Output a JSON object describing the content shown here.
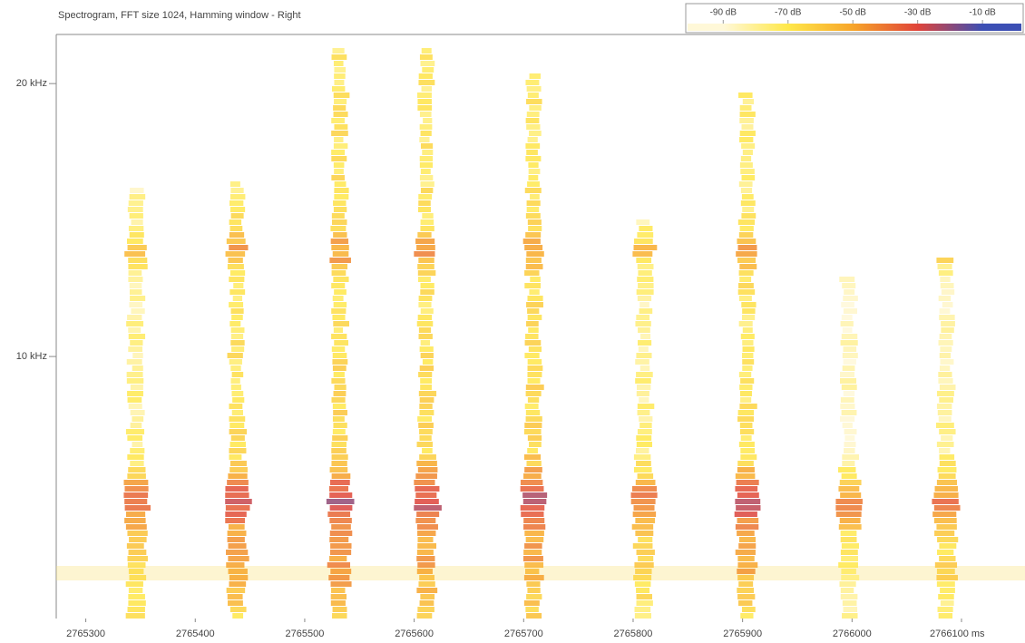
{
  "chart_data": {
    "type": "spectrogram",
    "title": "Spectrogram, FFT size 1024, Hamming window - Right",
    "xlim": [
      2765273,
      2766158
    ],
    "xticks": [
      2765300,
      2765400,
      2765500,
      2765600,
      2765700,
      2765800,
      2765900,
      2766000,
      {
        "value": 2766100,
        "label": "2766100 ms"
      }
    ],
    "ylim": [
      0.4,
      21.8
    ],
    "yticks": [
      {
        "value": 10,
        "label": "10 kHz"
      },
      {
        "value": 20,
        "label": "20 kHz"
      }
    ],
    "bursts": {
      "x": [
        2765346,
        2765438,
        2765532,
        2765611,
        2765709,
        2765810,
        2765904,
        2765997,
        2766086
      ],
      "values": [
        -25,
        -15,
        -12,
        -14,
        -13,
        -25,
        -16,
        -32,
        -28
      ],
      "max_freq": [
        16.4,
        16.6,
        21.5,
        21.5,
        20.6,
        15.2,
        19.9,
        13.1,
        13.8
      ]
    },
    "colorbar": {
      "lim": [
        -101,
        2
      ],
      "ticks": [
        {
          "value": -90,
          "label": "-90 dB"
        },
        {
          "value": -70,
          "label": "-70 dB"
        },
        {
          "value": -50,
          "label": "-50 dB"
        },
        {
          "value": -30,
          "label": "-30 dB"
        },
        {
          "value": -10,
          "label": "-10 dB"
        }
      ],
      "colors": [
        "#fff8d8",
        "#ffe84a",
        "#f7a52a",
        "#e0443a",
        "#3c4fb4"
      ]
    }
  }
}
